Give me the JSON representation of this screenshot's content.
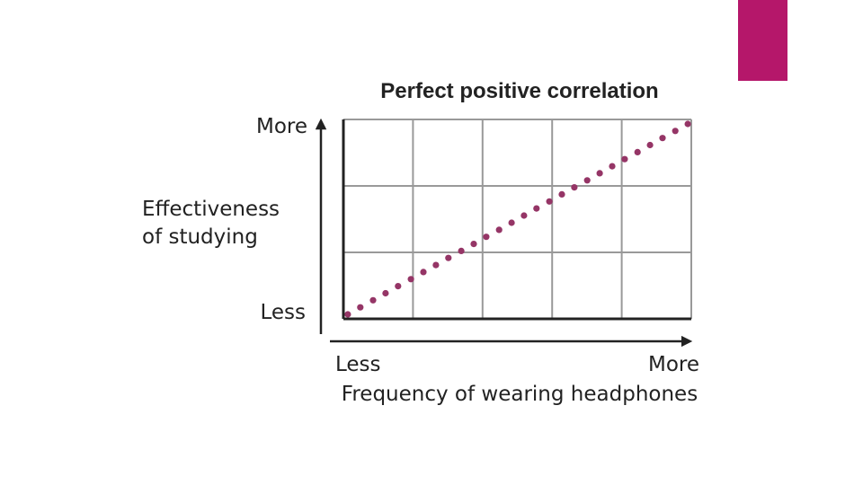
{
  "colors": {
    "accent": "#b5176a",
    "dots": "#953566",
    "grid": "#999999",
    "axis": "#222222"
  },
  "chart_data": {
    "type": "scatter",
    "title": "Perfect positive correlation",
    "xlabel": "Frequency of wearing headphones",
    "ylabel": [
      "Effectiveness",
      "of studying"
    ],
    "x_ticks": {
      "low": "Less",
      "high": "More"
    },
    "y_ticks": {
      "low": "Less",
      "high": "More"
    },
    "grid": true,
    "xlim": [
      0,
      1
    ],
    "ylim": [
      0,
      1
    ],
    "x": [
      0.01,
      0.046,
      0.083,
      0.119,
      0.155,
      0.192,
      0.228,
      0.264,
      0.3,
      0.337,
      0.373,
      0.409,
      0.446,
      0.482,
      0.518,
      0.554,
      0.591,
      0.627,
      0.663,
      0.7,
      0.736,
      0.772,
      0.808,
      0.845,
      0.881,
      0.917,
      0.954,
      0.99
    ],
    "y": [
      0.0,
      0.037,
      0.074,
      0.111,
      0.148,
      0.185,
      0.222,
      0.259,
      0.296,
      0.333,
      0.37,
      0.407,
      0.444,
      0.481,
      0.519,
      0.556,
      0.593,
      0.63,
      0.667,
      0.704,
      0.741,
      0.778,
      0.815,
      0.852,
      0.889,
      0.926,
      0.963,
      1.0
    ]
  }
}
